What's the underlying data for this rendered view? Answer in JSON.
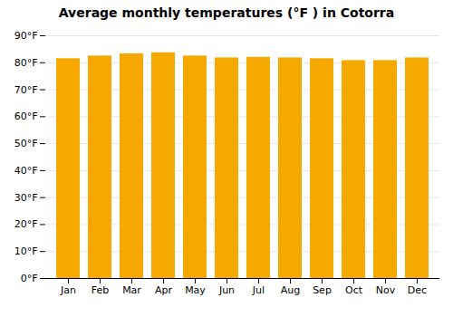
{
  "chart_data": {
    "type": "bar",
    "title": "Average monthly temperatures (°F ) in Cotorra",
    "categories": [
      "Jan",
      "Feb",
      "Mar",
      "Apr",
      "May",
      "Jun",
      "Jul",
      "Aug",
      "Sep",
      "Oct",
      "Nov",
      "Dec"
    ],
    "values": [
      81.5,
      82.5,
      83.3,
      83.7,
      82.5,
      81.8,
      82.0,
      81.8,
      81.5,
      80.8,
      80.8,
      81.8
    ],
    "color": "#F5A800",
    "ylim": [
      0,
      90
    ],
    "yticks": [
      {
        "value": 0,
        "label": "0°F"
      },
      {
        "value": 10,
        "label": "10°F"
      },
      {
        "value": 20,
        "label": "20°F"
      },
      {
        "value": 30,
        "label": "30°F"
      },
      {
        "value": 40,
        "label": "40°F"
      },
      {
        "value": 50,
        "label": "50°F"
      },
      {
        "value": 60,
        "label": "60°F"
      },
      {
        "value": 70,
        "label": "70°F"
      },
      {
        "value": 80,
        "label": "80°F"
      },
      {
        "value": 90,
        "label": "90°F"
      }
    ],
    "grid": true
  }
}
